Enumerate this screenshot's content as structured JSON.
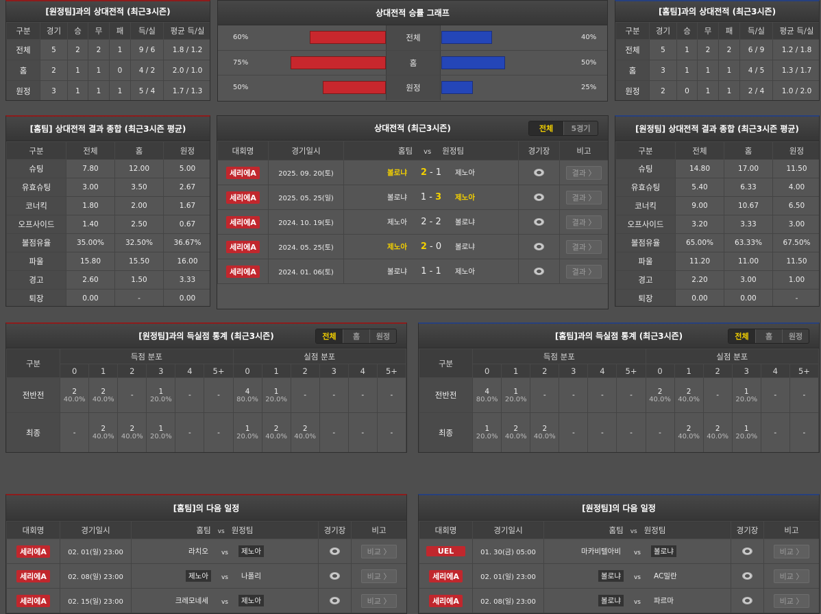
{
  "h2h_away": {
    "title": "[원정팀]과의 상대전적 (최근3시즌)",
    "headers": [
      "구분",
      "경기",
      "승",
      "무",
      "패",
      "득/실",
      "평균 득/실"
    ],
    "rows": [
      [
        "전체",
        "5",
        "2",
        "2",
        "1",
        "9 / 6",
        "1.8 / 1.2"
      ],
      [
        "홈",
        "2",
        "1",
        "1",
        "0",
        "4 / 2",
        "2.0 / 1.0"
      ],
      [
        "원정",
        "3",
        "1",
        "1",
        "1",
        "5 / 4",
        "1.7 / 1.3"
      ]
    ]
  },
  "h2h_home": {
    "title": "[홈팀]과의 상대전적 (최근3시즌)",
    "headers": [
      "구분",
      "경기",
      "승",
      "무",
      "패",
      "득/실",
      "평균 득/실"
    ],
    "rows": [
      [
        "전체",
        "5",
        "1",
        "2",
        "2",
        "6 / 9",
        "1.2 / 1.8"
      ],
      [
        "홈",
        "3",
        "1",
        "1",
        "1",
        "4 / 5",
        "1.3 / 1.7"
      ],
      [
        "원정",
        "2",
        "0",
        "1",
        "1",
        "2 / 4",
        "1.0 / 2.0"
      ]
    ]
  },
  "winrate": {
    "title": "상대전적 승률 그래프",
    "colors": {
      "home": "#c8272d",
      "away": "#2446b8"
    },
    "rows": [
      {
        "label": "전체",
        "home_pct": 60,
        "home_text": "60%",
        "away_pct": 40,
        "away_text": "40%"
      },
      {
        "label": "홈",
        "home_pct": 75,
        "home_text": "75%",
        "away_pct": 50,
        "away_text": "50%"
      },
      {
        "label": "원정",
        "home_pct": 50,
        "home_text": "50%",
        "away_pct": 25,
        "away_text": "25%"
      }
    ]
  },
  "summary_home": {
    "title": "[홈팀] 상대전적 결과 종합 (최근3시즌 평균)",
    "headers": [
      "구분",
      "전체",
      "홈",
      "원정"
    ],
    "rows": [
      [
        "슈팅",
        "7.80",
        "12.00",
        "5.00"
      ],
      [
        "유효슈팅",
        "3.00",
        "3.50",
        "2.67"
      ],
      [
        "코너킥",
        "1.80",
        "2.00",
        "1.67"
      ],
      [
        "오프사이드",
        "1.40",
        "2.50",
        "0.67"
      ],
      [
        "볼점유율",
        "35.00%",
        "32.50%",
        "36.67%"
      ],
      [
        "파울",
        "15.80",
        "15.50",
        "16.00"
      ],
      [
        "경고",
        "2.60",
        "1.50",
        "3.33"
      ],
      [
        "퇴장",
        "0.00",
        "-",
        "0.00"
      ]
    ]
  },
  "summary_away": {
    "title": "[원정팀] 상대전적 결과 종합 (최근3시즌 평균)",
    "headers": [
      "구분",
      "전체",
      "홈",
      "원정"
    ],
    "rows": [
      [
        "슈팅",
        "14.80",
        "17.00",
        "11.50"
      ],
      [
        "유효슈팅",
        "5.40",
        "6.33",
        "4.00"
      ],
      [
        "코너킥",
        "9.00",
        "10.67",
        "6.50"
      ],
      [
        "오프사이드",
        "3.20",
        "3.33",
        "3.00"
      ],
      [
        "볼점유율",
        "65.00%",
        "63.33%",
        "67.50%"
      ],
      [
        "파울",
        "11.20",
        "11.00",
        "11.50"
      ],
      [
        "경고",
        "2.20",
        "3.00",
        "1.00"
      ],
      [
        "퇴장",
        "0.00",
        "0.00",
        "-"
      ]
    ]
  },
  "h2h_matches": {
    "title": "상대전적 (최근3시즌)",
    "tabs": [
      "전체",
      "5경기"
    ],
    "active_tab": 0,
    "headers": [
      "대회명",
      "경기일시",
      "홈팀",
      "vs",
      "원정팀",
      "경기장",
      "비고"
    ],
    "rows": [
      {
        "league": "세리에A",
        "date": "2025. 09. 20(토)",
        "home": "볼로냐",
        "hs": "2",
        "as": "1",
        "away": "제노아",
        "winner": "home",
        "btn": "결과 〉"
      },
      {
        "league": "세리에A",
        "date": "2025. 05. 25(일)",
        "home": "볼로냐",
        "hs": "1",
        "as": "3",
        "away": "제노아",
        "winner": "away",
        "btn": "결과 〉"
      },
      {
        "league": "세리에A",
        "date": "2024. 10. 19(토)",
        "home": "제노아",
        "hs": "2",
        "as": "2",
        "away": "볼로냐",
        "winner": "draw",
        "btn": "결과 〉"
      },
      {
        "league": "세리에A",
        "date": "2024. 05. 25(토)",
        "home": "제노아",
        "hs": "2",
        "as": "0",
        "away": "볼로냐",
        "winner": "home",
        "btn": "결과 〉"
      },
      {
        "league": "세리에A",
        "date": "2024. 01. 06(토)",
        "home": "볼로냐",
        "hs": "1",
        "as": "1",
        "away": "제노아",
        "winner": "draw",
        "btn": "결과 〉"
      }
    ]
  },
  "goals_away": {
    "title": "[원정팀]과의 득실점 통계 (최근3시즌)",
    "tabs": [
      "전체",
      "홈",
      "원정"
    ],
    "active_tab": 0,
    "col_label": "구분",
    "group1": "득점 분포",
    "group2": "실점 분포",
    "cols": [
      "0",
      "1",
      "2",
      "3",
      "4",
      "5+",
      "0",
      "1",
      "2",
      "3",
      "4",
      "5+"
    ],
    "rows": [
      {
        "label": "전반전",
        "cells": [
          [
            "2",
            "40.0%"
          ],
          [
            "2",
            "40.0%"
          ],
          [
            "-",
            ""
          ],
          [
            "1",
            "20.0%"
          ],
          [
            "-",
            ""
          ],
          [
            "-",
            ""
          ],
          [
            "4",
            "80.0%"
          ],
          [
            "1",
            "20.0%"
          ],
          [
            "-",
            ""
          ],
          [
            "-",
            ""
          ],
          [
            "-",
            ""
          ],
          [
            "-",
            ""
          ]
        ]
      },
      {
        "label": "최종",
        "cells": [
          [
            "-",
            ""
          ],
          [
            "2",
            "40.0%"
          ],
          [
            "2",
            "40.0%"
          ],
          [
            "1",
            "20.0%"
          ],
          [
            "-",
            ""
          ],
          [
            "-",
            ""
          ],
          [
            "1",
            "20.0%"
          ],
          [
            "2",
            "40.0%"
          ],
          [
            "2",
            "40.0%"
          ],
          [
            "-",
            ""
          ],
          [
            "-",
            ""
          ],
          [
            "-",
            ""
          ]
        ]
      }
    ]
  },
  "goals_home": {
    "title": "[홈팀]과의 득실점 통계 (최근3시즌)",
    "tabs": [
      "전체",
      "홈",
      "원정"
    ],
    "active_tab": 0,
    "col_label": "구분",
    "group1": "득점 분포",
    "group2": "실점 분포",
    "cols": [
      "0",
      "1",
      "2",
      "3",
      "4",
      "5+",
      "0",
      "1",
      "2",
      "3",
      "4",
      "5+"
    ],
    "rows": [
      {
        "label": "전반전",
        "cells": [
          [
            "4",
            "80.0%"
          ],
          [
            "1",
            "20.0%"
          ],
          [
            "-",
            ""
          ],
          [
            "-",
            ""
          ],
          [
            "-",
            ""
          ],
          [
            "-",
            ""
          ],
          [
            "2",
            "40.0%"
          ],
          [
            "2",
            "40.0%"
          ],
          [
            "-",
            ""
          ],
          [
            "1",
            "20.0%"
          ],
          [
            "-",
            ""
          ],
          [
            "-",
            ""
          ]
        ]
      },
      {
        "label": "최종",
        "cells": [
          [
            "1",
            "20.0%"
          ],
          [
            "2",
            "40.0%"
          ],
          [
            "2",
            "40.0%"
          ],
          [
            "-",
            ""
          ],
          [
            "-",
            ""
          ],
          [
            "-",
            ""
          ],
          [
            "-",
            ""
          ],
          [
            "2",
            "40.0%"
          ],
          [
            "2",
            "40.0%"
          ],
          [
            "1",
            "20.0%"
          ],
          [
            "-",
            ""
          ],
          [
            "-",
            ""
          ]
        ]
      }
    ]
  },
  "next_home": {
    "title": "[홈팀]의 다음 일정",
    "headers": [
      "대회명",
      "경기일시",
      "홈팀",
      "vs",
      "원정팀",
      "경기장",
      "비고"
    ],
    "rows": [
      {
        "league": "세리에A",
        "date": "02. 01(일) 23:00",
        "home": "라치오",
        "away": "제노아",
        "focus": "away",
        "btn": "비교 〉"
      },
      {
        "league": "세리에A",
        "date": "02. 08(일) 23:00",
        "home": "제노아",
        "away": "나폴리",
        "focus": "home",
        "btn": "비교 〉"
      },
      {
        "league": "세리에A",
        "date": "02. 15(일) 23:00",
        "home": "크레모네세",
        "away": "제노아",
        "focus": "away",
        "btn": "비교 〉"
      }
    ]
  },
  "next_away": {
    "title": "[원정팀]의 다음 일정",
    "headers": [
      "대회명",
      "경기일시",
      "홈팀",
      "vs",
      "원정팀",
      "경기장",
      "비고"
    ],
    "rows": [
      {
        "league": "UEL",
        "date": "01. 30(금) 05:00",
        "home": "마카비텔아비",
        "away": "볼로냐",
        "focus": "away",
        "btn": "비교 〉"
      },
      {
        "league": "세리에A",
        "date": "02. 01(일) 23:00",
        "home": "볼로냐",
        "away": "AC밀란",
        "focus": "home",
        "btn": "비교 〉"
      },
      {
        "league": "세리에A",
        "date": "02. 08(일) 23:00",
        "home": "볼로냐",
        "away": "파르마",
        "focus": "home",
        "btn": "비교 〉"
      }
    ]
  }
}
